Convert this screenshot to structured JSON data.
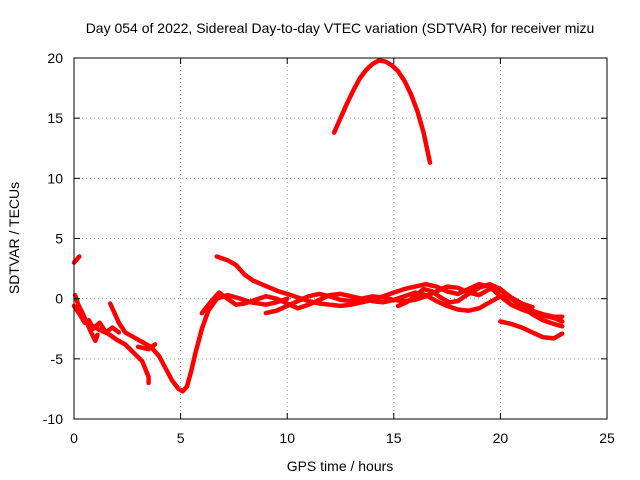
{
  "chart_data": {
    "type": "line",
    "title": "Day 054 of 2022, Sidereal Day-to-day VTEC variation (SDTVAR) for receiver mizu",
    "xlabel": "GPS time / hours",
    "ylabel": "SDTVAR / TECUs",
    "xlim": [
      0,
      25
    ],
    "ylim": [
      -10,
      20
    ],
    "xticks": [
      0,
      5,
      10,
      15,
      20,
      25
    ],
    "yticks": [
      -10,
      -5,
      0,
      5,
      10,
      15,
      20
    ],
    "grid": true,
    "legend": "none",
    "series_color": "#ff0000",
    "series": [
      {
        "name": "seg-a",
        "points": [
          [
            0.0,
            3.0
          ],
          [
            0.1,
            3.2
          ],
          [
            0.25,
            3.5
          ]
        ]
      },
      {
        "name": "seg-b",
        "points": [
          [
            0.05,
            0.3
          ],
          [
            0.2,
            -0.5
          ],
          [
            0.4,
            -1.2
          ],
          [
            0.6,
            -2.0
          ],
          [
            0.8,
            -2.8
          ],
          [
            1.0,
            -3.5
          ],
          [
            1.1,
            -3.0
          ]
        ]
      },
      {
        "name": "seg-c",
        "points": [
          [
            0.0,
            -0.6
          ],
          [
            0.3,
            -1.4
          ],
          [
            0.5,
            -2.0
          ],
          [
            0.7,
            -1.8
          ],
          [
            0.9,
            -2.5
          ],
          [
            1.2,
            -2.0
          ],
          [
            1.5,
            -2.8
          ],
          [
            1.8,
            -2.4
          ],
          [
            2.1,
            -2.8
          ]
        ]
      },
      {
        "name": "seg-d",
        "points": [
          [
            0.8,
            -2.2
          ],
          [
            1.2,
            -2.6
          ],
          [
            1.6,
            -2.9
          ],
          [
            2.0,
            -3.4
          ],
          [
            2.4,
            -3.8
          ],
          [
            2.8,
            -4.5
          ],
          [
            3.2,
            -5.2
          ],
          [
            3.5,
            -6.5
          ],
          [
            3.5,
            -7.0
          ]
        ]
      },
      {
        "name": "seg-e",
        "points": [
          [
            1.7,
            -0.4
          ],
          [
            1.9,
            -1.2
          ],
          [
            2.1,
            -2.0
          ],
          [
            2.4,
            -2.8
          ],
          [
            2.8,
            -3.2
          ],
          [
            3.2,
            -3.6
          ],
          [
            3.6,
            -4.0
          ],
          [
            4.0,
            -4.8
          ],
          [
            4.3,
            -5.8
          ],
          [
            4.6,
            -6.8
          ],
          [
            4.9,
            -7.5
          ],
          [
            5.1,
            -7.7
          ],
          [
            5.3,
            -7.3
          ],
          [
            5.5,
            -6.0
          ],
          [
            5.7,
            -4.5
          ],
          [
            6.0,
            -2.5
          ],
          [
            6.3,
            -1.0
          ],
          [
            6.7,
            0.0
          ],
          [
            7.2,
            0.3
          ],
          [
            7.8,
            0.0
          ],
          [
            8.3,
            -0.3
          ],
          [
            9.0,
            -0.5
          ],
          [
            9.5,
            -0.3
          ],
          [
            10.0,
            0.0
          ]
        ]
      },
      {
        "name": "seg-f",
        "points": [
          [
            3.0,
            -4.0
          ],
          [
            3.5,
            -4.2
          ],
          [
            3.8,
            -3.8
          ]
        ]
      },
      {
        "name": "seg-g",
        "points": [
          [
            6.7,
            3.5
          ],
          [
            7.2,
            3.2
          ],
          [
            7.6,
            2.8
          ],
          [
            8.0,
            2.0
          ],
          [
            8.4,
            1.5
          ],
          [
            8.8,
            1.2
          ],
          [
            9.2,
            0.9
          ],
          [
            9.6,
            0.6
          ],
          [
            10.0,
            0.4
          ],
          [
            10.5,
            0.1
          ],
          [
            11.0,
            -0.2
          ],
          [
            11.5,
            -0.4
          ],
          [
            12.0,
            -0.5
          ],
          [
            12.5,
            -0.6
          ],
          [
            13.0,
            -0.5
          ],
          [
            13.5,
            -0.3
          ],
          [
            14.0,
            -0.1
          ],
          [
            14.5,
            0.2
          ],
          [
            15.0,
            0.5
          ],
          [
            15.5,
            0.8
          ],
          [
            16.0,
            1.0
          ],
          [
            16.5,
            1.2
          ],
          [
            17.0,
            1.0
          ],
          [
            17.5,
            0.6
          ],
          [
            18.0,
            0.4
          ],
          [
            18.5,
            0.8
          ],
          [
            19.0,
            1.2
          ],
          [
            19.5,
            1.0
          ],
          [
            20.0,
            0.2
          ],
          [
            20.5,
            -0.5
          ],
          [
            21.0,
            -0.9
          ],
          [
            21.5,
            -1.2
          ],
          [
            22.0,
            -1.4
          ],
          [
            22.5,
            -1.6
          ],
          [
            22.9,
            -1.9
          ]
        ]
      },
      {
        "name": "seg-h",
        "points": [
          [
            6.0,
            -1.2
          ],
          [
            6.4,
            -0.3
          ],
          [
            6.8,
            0.5
          ],
          [
            7.2,
            0.0
          ],
          [
            7.6,
            -0.5
          ],
          [
            8.0,
            -0.4
          ],
          [
            8.5,
            -0.1
          ],
          [
            9.0,
            0.2
          ],
          [
            9.5,
            0.0
          ],
          [
            10.0,
            -0.4
          ],
          [
            10.5,
            -0.8
          ],
          [
            11.0,
            -0.5
          ],
          [
            11.5,
            -0.1
          ],
          [
            12.0,
            0.3
          ],
          [
            12.5,
            0.4
          ],
          [
            13.0,
            0.2
          ],
          [
            13.5,
            0.0
          ],
          [
            14.0,
            -0.2
          ],
          [
            14.5,
            -0.3
          ],
          [
            15.0,
            -0.1
          ],
          [
            15.5,
            0.2
          ],
          [
            16.0,
            0.5
          ],
          [
            16.5,
            0.3
          ],
          [
            17.0,
            -0.2
          ],
          [
            17.5,
            -0.6
          ],
          [
            18.0,
            -0.9
          ],
          [
            18.5,
            -1.0
          ],
          [
            19.0,
            -0.8
          ],
          [
            19.5,
            -0.3
          ],
          [
            20.0,
            0.2
          ],
          [
            20.5,
            0.0
          ],
          [
            21.0,
            -0.6
          ],
          [
            21.5,
            -1.3
          ],
          [
            22.0,
            -1.8
          ],
          [
            22.5,
            -2.1
          ],
          [
            22.9,
            -2.3
          ]
        ]
      },
      {
        "name": "seg-i",
        "points": [
          [
            9.0,
            -1.2
          ],
          [
            9.5,
            -1.0
          ],
          [
            10.0,
            -0.6
          ],
          [
            10.5,
            -0.2
          ],
          [
            11.0,
            0.2
          ],
          [
            11.5,
            0.4
          ],
          [
            12.0,
            0.2
          ],
          [
            12.5,
            -0.1
          ],
          [
            13.0,
            -0.2
          ],
          [
            13.5,
            0.0
          ],
          [
            14.0,
            0.2
          ],
          [
            14.5,
            0.1
          ],
          [
            15.0,
            -0.1
          ],
          [
            15.5,
            -0.2
          ],
          [
            16.0,
            -0.1
          ],
          [
            16.5,
            0.2
          ],
          [
            17.0,
            0.6
          ],
          [
            17.5,
            1.0
          ],
          [
            18.0,
            0.9
          ],
          [
            18.5,
            0.5
          ],
          [
            19.0,
            0.3
          ],
          [
            19.5,
            0.8
          ],
          [
            20.0,
            0.7
          ],
          [
            20.5,
            0.1
          ],
          [
            21.0,
            -0.5
          ],
          [
            21.5,
            -1.0
          ],
          [
            22.0,
            -1.3
          ],
          [
            22.5,
            -1.5
          ],
          [
            22.9,
            -1.5
          ]
        ]
      },
      {
        "name": "seg-j",
        "points": [
          [
            15.2,
            -0.6
          ],
          [
            15.6,
            -0.3
          ],
          [
            16.0,
            0.2
          ],
          [
            16.4,
            0.8
          ],
          [
            16.8,
            0.6
          ],
          [
            17.2,
            0.1
          ],
          [
            17.6,
            -0.3
          ],
          [
            18.0,
            -0.2
          ],
          [
            18.5,
            0.4
          ],
          [
            19.0,
            0.9
          ],
          [
            19.5,
            1.2
          ],
          [
            20.0,
            0.8
          ],
          [
            20.5,
            0.1
          ],
          [
            21.0,
            -0.4
          ],
          [
            21.5,
            -0.7
          ]
        ]
      },
      {
        "name": "seg-k",
        "points": [
          [
            20.0,
            -1.9
          ],
          [
            20.5,
            -2.1
          ],
          [
            21.0,
            -2.4
          ],
          [
            21.5,
            -2.8
          ],
          [
            22.0,
            -3.2
          ],
          [
            22.5,
            -3.3
          ],
          [
            22.9,
            -2.9
          ]
        ]
      },
      {
        "name": "seg-l",
        "points": [
          [
            12.2,
            13.8
          ],
          [
            12.5,
            15.0
          ],
          [
            12.8,
            16.2
          ],
          [
            13.1,
            17.3
          ],
          [
            13.4,
            18.3
          ],
          [
            13.7,
            19.0
          ],
          [
            14.0,
            19.5
          ],
          [
            14.3,
            19.8
          ],
          [
            14.6,
            19.7
          ],
          [
            14.9,
            19.4
          ],
          [
            15.2,
            18.9
          ],
          [
            15.5,
            18.1
          ],
          [
            15.8,
            17.0
          ],
          [
            16.1,
            15.6
          ],
          [
            16.4,
            13.8
          ],
          [
            16.7,
            11.3
          ]
        ]
      }
    ]
  }
}
